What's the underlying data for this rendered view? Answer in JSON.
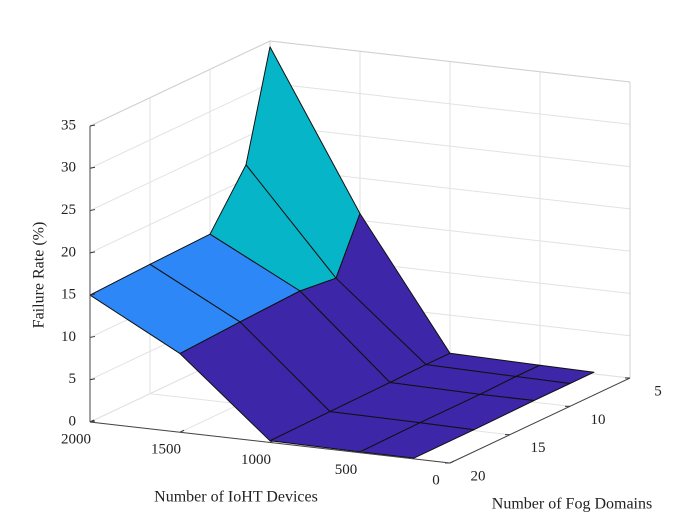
{
  "chart_data": {
    "type": "surface",
    "xlabel": "Number of IoHT Devices",
    "ylabel": "Number of Fog Domains",
    "zlabel": "Failure Rate (%)",
    "x": [
      200,
      500,
      1000,
      1500,
      2000
    ],
    "y": [
      5,
      7,
      10,
      15,
      20
    ],
    "z": [
      [
        0.2,
        0.3,
        0.5,
        15.8,
        34.3
      ],
      [
        0.2,
        0.3,
        0.5,
        9.5,
        21.7
      ],
      [
        0.2,
        0.2,
        0.4,
        10,
        15.5
      ],
      [
        0.1,
        0.2,
        0.3,
        9.7,
        15.3
      ],
      [
        0.1,
        0.1,
        0.2,
        9.3,
        15
      ]
    ],
    "xlim": [
      0,
      2000
    ],
    "xticks": [
      0,
      500,
      1000,
      1500,
      2000
    ],
    "ylim": [
      5,
      20
    ],
    "yticks": [
      5,
      10,
      15,
      20
    ],
    "zlim": [
      0,
      35
    ],
    "zticks": [
      0,
      5,
      10,
      15,
      20,
      25,
      30,
      35
    ],
    "colormap": [
      "#3e26a8",
      "#2e87f7",
      "#06b6c8"
    ],
    "grid": true
  }
}
